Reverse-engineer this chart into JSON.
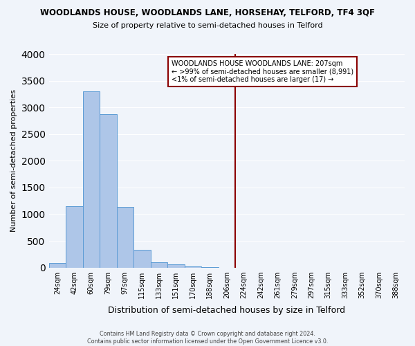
{
  "title": "WOODLANDS HOUSE, WOODLANDS LANE, HORSEHAY, TELFORD, TF4 3QF",
  "subtitle": "Size of property relative to semi-detached houses in Telford",
  "xlabel": "Distribution of semi-detached houses by size in Telford",
  "ylabel": "Number of semi-detached properties",
  "footer_line1": "Contains HM Land Registry data © Crown copyright and database right 2024.",
  "footer_line2": "Contains public sector information licensed under the Open Government Licence v3.0.",
  "bin_labels": [
    "24sqm",
    "42sqm",
    "60sqm",
    "79sqm",
    "97sqm",
    "115sqm",
    "133sqm",
    "151sqm",
    "170sqm",
    "188sqm",
    "206sqm",
    "224sqm",
    "242sqm",
    "261sqm",
    "279sqm",
    "297sqm",
    "315sqm",
    "333sqm",
    "352sqm",
    "370sqm",
    "388sqm"
  ],
  "bar_values": [
    80,
    1150,
    3300,
    2870,
    1130,
    330,
    105,
    55,
    15,
    5,
    0,
    0,
    0,
    0,
    0,
    0,
    0,
    0,
    0,
    0,
    0
  ],
  "bar_color": "#aec6e8",
  "bar_edge_color": "#5b9bd5",
  "vline_x_index": 10,
  "vline_color": "#8b0000",
  "ylim": [
    0,
    4000
  ],
  "yticks": [
    0,
    500,
    1000,
    1500,
    2000,
    2500,
    3000,
    3500,
    4000
  ],
  "legend_title": "WOODLANDS HOUSE WOODLANDS LANE: 207sqm",
  "legend_line1": "← >99% of semi-detached houses are smaller (8,991)",
  "legend_line2": "<1% of semi-detached houses are larger (17) →",
  "legend_box_color": "#ffffff",
  "legend_box_edge_color": "#8b0000",
  "background_color": "#f0f4fa"
}
